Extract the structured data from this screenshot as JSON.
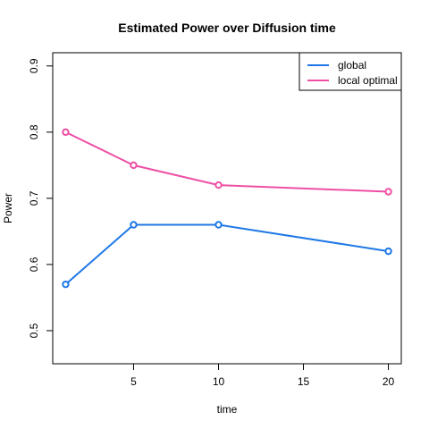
{
  "chart_data": {
    "type": "line",
    "title": "Estimated Power over Diffusion time",
    "xlabel": "time",
    "ylabel": "Power",
    "x": [
      1,
      5,
      10,
      20
    ],
    "xlim": [
      0.24,
      20.76
    ],
    "ylim": [
      0.45,
      0.92
    ],
    "xticks": [
      5,
      10,
      15,
      20
    ],
    "xtick_labels": [
      "5",
      "10",
      "15",
      "20"
    ],
    "yticks": [
      0.5,
      0.6,
      0.7,
      0.8,
      0.9
    ],
    "ytick_labels": [
      "0.5",
      "0.6",
      "0.7",
      "0.8",
      "0.9"
    ],
    "grid": false,
    "legend_position": "top-right",
    "series": [
      {
        "name": "global",
        "color": "#1f78e6",
        "values": [
          0.57,
          0.66,
          0.66,
          0.62
        ]
      },
      {
        "name": "local optimal",
        "color": "#ee4fa5",
        "values": [
          0.8,
          0.75,
          0.72,
          0.71
        ]
      }
    ]
  }
}
